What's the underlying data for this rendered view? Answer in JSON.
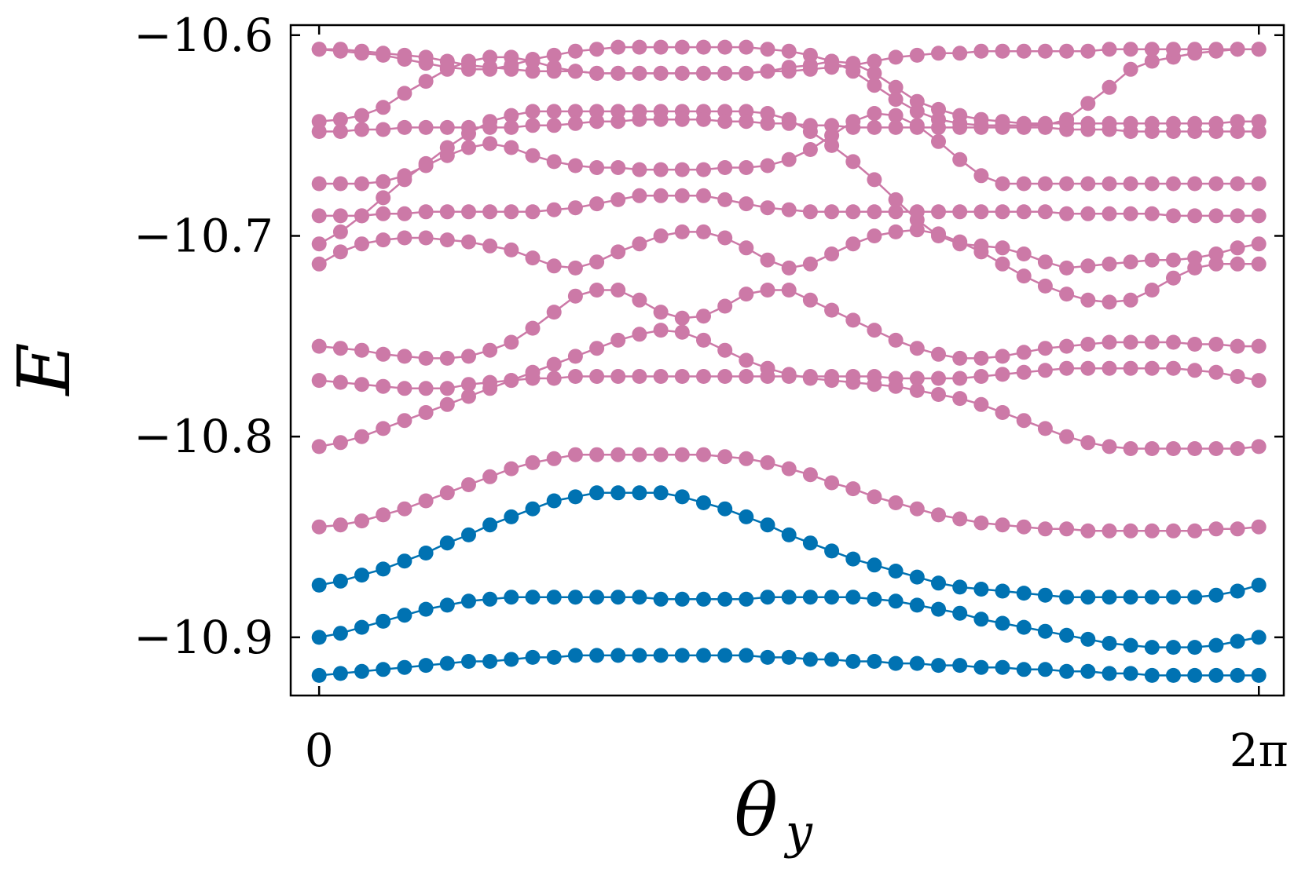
{
  "chart_data": {
    "type": "line",
    "xlabel": "θ",
    "xlabel_subscript": "y",
    "ylabel": "E",
    "xlim": [
      -0.19,
      6.45
    ],
    "ylim": [
      -10.929,
      -10.595
    ],
    "xticks": [
      {
        "value": 0,
        "label": "0"
      },
      {
        "value": 6.2832,
        "label": "2π"
      }
    ],
    "yticks": [
      {
        "value": -10.6,
        "label": "−10.6"
      },
      {
        "value": -10.7,
        "label": "−10.7"
      },
      {
        "value": -10.8,
        "label": "−10.8"
      },
      {
        "value": -10.9,
        "label": "−10.9"
      }
    ],
    "grid": false,
    "legend": "none",
    "n_points": 45,
    "colors": {
      "pink": "#cc79a7",
      "blue": "#0072b2"
    },
    "series": [
      {
        "color": "blue",
        "values": [
          -10.919,
          -10.918,
          -10.917,
          -10.916,
          -10.915,
          -10.914,
          -10.913,
          -10.912,
          -10.912,
          -10.911,
          -10.91,
          -10.91,
          -10.909,
          -10.909,
          -10.909,
          -10.909,
          -10.909,
          -10.909,
          -10.909,
          -10.909,
          -10.909,
          -10.91,
          -10.91,
          -10.911,
          -10.911,
          -10.912,
          -10.912,
          -10.913,
          -10.913,
          -10.914,
          -10.914,
          -10.915,
          -10.915,
          -10.916,
          -10.916,
          -10.917,
          -10.917,
          -10.918,
          -10.918,
          -10.919,
          -10.919,
          -10.919,
          -10.919,
          -10.919,
          -10.919
        ]
      },
      {
        "color": "blue",
        "values": [
          -10.9,
          -10.898,
          -10.895,
          -10.892,
          -10.889,
          -10.886,
          -10.884,
          -10.882,
          -10.881,
          -10.88,
          -10.88,
          -10.88,
          -10.88,
          -10.88,
          -10.88,
          -10.88,
          -10.881,
          -10.881,
          -10.881,
          -10.881,
          -10.881,
          -10.88,
          -10.88,
          -10.88,
          -10.88,
          -10.88,
          -10.881,
          -10.882,
          -10.884,
          -10.886,
          -10.888,
          -10.891,
          -10.893,
          -10.895,
          -10.897,
          -10.899,
          -10.901,
          -10.903,
          -10.904,
          -10.905,
          -10.905,
          -10.905,
          -10.904,
          -10.902,
          -10.9
        ]
      },
      {
        "color": "blue",
        "values": [
          -10.874,
          -10.872,
          -10.869,
          -10.866,
          -10.862,
          -10.858,
          -10.853,
          -10.849,
          -10.844,
          -10.84,
          -10.836,
          -10.832,
          -10.83,
          -10.828,
          -10.828,
          -10.828,
          -10.828,
          -10.83,
          -10.833,
          -10.836,
          -10.84,
          -10.844,
          -10.849,
          -10.853,
          -10.857,
          -10.861,
          -10.864,
          -10.867,
          -10.87,
          -10.873,
          -10.875,
          -10.876,
          -10.877,
          -10.878,
          -10.879,
          -10.88,
          -10.88,
          -10.88,
          -10.88,
          -10.88,
          -10.88,
          -10.88,
          -10.879,
          -10.877,
          -10.874
        ]
      },
      {
        "color": "pink",
        "values": [
          -10.845,
          -10.844,
          -10.842,
          -10.839,
          -10.836,
          -10.832,
          -10.828,
          -10.824,
          -10.82,
          -10.816,
          -10.813,
          -10.811,
          -10.809,
          -10.809,
          -10.809,
          -10.809,
          -10.809,
          -10.809,
          -10.809,
          -10.81,
          -10.811,
          -10.813,
          -10.816,
          -10.819,
          -10.823,
          -10.826,
          -10.83,
          -10.833,
          -10.836,
          -10.839,
          -10.841,
          -10.843,
          -10.844,
          -10.845,
          -10.846,
          -10.846,
          -10.847,
          -10.847,
          -10.847,
          -10.847,
          -10.847,
          -10.847,
          -10.846,
          -10.846,
          -10.845
        ]
      },
      {
        "color": "pink",
        "values": [
          -10.805,
          -10.803,
          -10.8,
          -10.796,
          -10.792,
          -10.788,
          -10.784,
          -10.78,
          -10.776,
          -10.772,
          -10.768,
          -10.764,
          -10.76,
          -10.756,
          -10.752,
          -10.749,
          -10.747,
          -10.748,
          -10.752,
          -10.757,
          -10.762,
          -10.766,
          -10.769,
          -10.771,
          -10.772,
          -10.773,
          -10.774,
          -10.775,
          -10.777,
          -10.779,
          -10.781,
          -10.784,
          -10.788,
          -10.792,
          -10.796,
          -10.8,
          -10.803,
          -10.805,
          -10.806,
          -10.806,
          -10.806,
          -10.806,
          -10.806,
          -10.806,
          -10.805
        ]
      },
      {
        "color": "pink",
        "values": [
          -10.772,
          -10.773,
          -10.774,
          -10.775,
          -10.776,
          -10.776,
          -10.776,
          -10.774,
          -10.773,
          -10.772,
          -10.771,
          -10.771,
          -10.77,
          -10.77,
          -10.77,
          -10.77,
          -10.77,
          -10.77,
          -10.77,
          -10.77,
          -10.77,
          -10.77,
          -10.77,
          -10.77,
          -10.77,
          -10.77,
          -10.77,
          -10.771,
          -10.771,
          -10.771,
          -10.771,
          -10.77,
          -10.769,
          -10.768,
          -10.767,
          -10.766,
          -10.766,
          -10.766,
          -10.766,
          -10.766,
          -10.766,
          -10.767,
          -10.768,
          -10.77,
          -10.772
        ]
      },
      {
        "color": "pink",
        "values": [
          -10.755,
          -10.756,
          -10.757,
          -10.759,
          -10.76,
          -10.761,
          -10.761,
          -10.76,
          -10.757,
          -10.753,
          -10.746,
          -10.738,
          -10.73,
          -10.727,
          -10.727,
          -10.732,
          -10.738,
          -10.741,
          -10.74,
          -10.735,
          -10.729,
          -10.727,
          -10.727,
          -10.732,
          -10.737,
          -10.742,
          -10.747,
          -10.752,
          -10.756,
          -10.759,
          -10.761,
          -10.761,
          -10.76,
          -10.758,
          -10.756,
          -10.755,
          -10.754,
          -10.753,
          -10.753,
          -10.753,
          -10.753,
          -10.754,
          -10.754,
          -10.755,
          -10.755
        ]
      },
      {
        "color": "pink",
        "values": [
          -10.714,
          -10.708,
          -10.704,
          -10.702,
          -10.701,
          -10.701,
          -10.702,
          -10.703,
          -10.705,
          -10.707,
          -10.711,
          -10.715,
          -10.716,
          -10.713,
          -10.708,
          -10.704,
          -10.7,
          -10.698,
          -10.698,
          -10.701,
          -10.706,
          -10.712,
          -10.716,
          -10.714,
          -10.709,
          -10.704,
          -10.7,
          -10.698,
          -10.697,
          -10.699,
          -10.703,
          -10.708,
          -10.714,
          -10.72,
          -10.725,
          -10.729,
          -10.732,
          -10.733,
          -10.732,
          -10.727,
          -10.721,
          -10.716,
          -10.714,
          -10.714,
          -10.714
        ]
      },
      {
        "color": "pink",
        "values": [
          -10.704,
          -10.698,
          -10.69,
          -10.681,
          -10.672,
          -10.664,
          -10.656,
          -10.649,
          -10.643,
          -10.64,
          -10.638,
          -10.638,
          -10.638,
          -10.638,
          -10.638,
          -10.638,
          -10.638,
          -10.638,
          -10.638,
          -10.638,
          -10.638,
          -10.639,
          -10.642,
          -10.648,
          -10.655,
          -10.663,
          -10.672,
          -10.682,
          -10.692,
          -10.7,
          -10.704,
          -10.705,
          -10.706,
          -10.709,
          -10.713,
          -10.716,
          -10.715,
          -10.714,
          -10.713,
          -10.712,
          -10.712,
          -10.711,
          -10.709,
          -10.706,
          -10.704
        ]
      },
      {
        "color": "pink",
        "values": [
          -10.69,
          -10.69,
          -10.69,
          -10.689,
          -10.689,
          -10.688,
          -10.688,
          -10.688,
          -10.688,
          -10.688,
          -10.688,
          -10.687,
          -10.686,
          -10.684,
          -10.682,
          -10.68,
          -10.68,
          -10.68,
          -10.68,
          -10.682,
          -10.684,
          -10.686,
          -10.687,
          -10.688,
          -10.688,
          -10.688,
          -10.688,
          -10.688,
          -10.688,
          -10.688,
          -10.688,
          -10.688,
          -10.688,
          -10.688,
          -10.688,
          -10.689,
          -10.689,
          -10.689,
          -10.689,
          -10.689,
          -10.69,
          -10.69,
          -10.69,
          -10.69,
          -10.69
        ]
      },
      {
        "color": "pink",
        "values": [
          -10.674,
          -10.674,
          -10.674,
          -10.673,
          -10.67,
          -10.665,
          -10.66,
          -10.656,
          -10.654,
          -10.656,
          -10.66,
          -10.663,
          -10.665,
          -10.666,
          -10.666,
          -10.667,
          -10.667,
          -10.667,
          -10.667,
          -10.666,
          -10.666,
          -10.665,
          -10.662,
          -10.657,
          -10.65,
          -10.643,
          -10.639,
          -10.64,
          -10.645,
          -10.653,
          -10.662,
          -10.67,
          -10.674,
          -10.674,
          -10.674,
          -10.674,
          -10.674,
          -10.674,
          -10.674,
          -10.674,
          -10.674,
          -10.674,
          -10.674,
          -10.674,
          -10.674
        ]
      },
      {
        "color": "pink",
        "values": [
          -10.648,
          -10.648,
          -10.647,
          -10.647,
          -10.646,
          -10.646,
          -10.646,
          -10.646,
          -10.646,
          -10.646,
          -10.645,
          -10.645,
          -10.644,
          -10.643,
          -10.643,
          -10.642,
          -10.642,
          -10.642,
          -10.642,
          -10.643,
          -10.643,
          -10.644,
          -10.644,
          -10.645,
          -10.645,
          -10.646,
          -10.646,
          -10.646,
          -10.646,
          -10.646,
          -10.646,
          -10.646,
          -10.646,
          -10.646,
          -10.646,
          -10.647,
          -10.647,
          -10.647,
          -10.648,
          -10.648,
          -10.648,
          -10.648,
          -10.648,
          -10.648,
          -10.648
        ]
      },
      {
        "color": "pink",
        "values": [
          -10.643,
          -10.642,
          -10.64,
          -10.636,
          -10.629,
          -10.623,
          -10.617,
          -10.613,
          -10.611,
          -10.611,
          -10.613,
          -10.616,
          -10.618,
          -10.619,
          -10.619,
          -10.619,
          -10.619,
          -10.619,
          -10.619,
          -10.619,
          -10.619,
          -10.618,
          -10.616,
          -10.615,
          -10.613,
          -10.614,
          -10.619,
          -10.626,
          -10.633,
          -10.637,
          -10.64,
          -10.642,
          -10.643,
          -10.644,
          -10.644,
          -10.644,
          -10.644,
          -10.644,
          -10.644,
          -10.644,
          -10.644,
          -10.644,
          -10.644,
          -10.643,
          -10.643
        ]
      },
      {
        "color": "pink",
        "values": [
          -10.607,
          -10.608,
          -10.609,
          -10.61,
          -10.612,
          -10.614,
          -10.616,
          -10.617,
          -10.617,
          -10.615,
          -10.612,
          -10.61,
          -10.608,
          -10.607,
          -10.606,
          -10.606,
          -10.606,
          -10.606,
          -10.606,
          -10.606,
          -10.606,
          -10.607,
          -10.608,
          -10.61,
          -10.613,
          -10.618,
          -10.625,
          -10.632,
          -10.638,
          -10.642,
          -10.644,
          -10.645,
          -10.645,
          -10.645,
          -10.645,
          -10.642,
          -10.634,
          -10.626,
          -10.617,
          -10.613,
          -10.611,
          -10.609,
          -10.608,
          -10.607,
          -10.607
        ]
      },
      {
        "color": "pink",
        "values": [
          -10.607,
          -10.607,
          -10.608,
          -10.609,
          -10.61,
          -10.611,
          -10.613,
          -10.615,
          -10.616,
          -10.617,
          -10.618,
          -10.618,
          -10.618,
          -10.619,
          -10.619,
          -10.619,
          -10.619,
          -10.619,
          -10.619,
          -10.619,
          -10.619,
          -10.618,
          -10.618,
          -10.617,
          -10.616,
          -10.615,
          -10.613,
          -10.611,
          -10.61,
          -10.609,
          -10.609,
          -10.608,
          -10.608,
          -10.608,
          -10.608,
          -10.608,
          -10.608,
          -10.607,
          -10.607,
          -10.607,
          -10.607,
          -10.607,
          -10.607,
          -10.607,
          -10.607
        ]
      }
    ]
  }
}
